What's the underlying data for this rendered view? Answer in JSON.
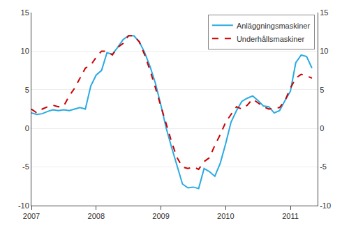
{
  "chart_data": {
    "type": "line",
    "x": [
      2007.0,
      2007.083,
      2007.167,
      2007.25,
      2007.333,
      2007.417,
      2007.5,
      2007.583,
      2007.667,
      2007.75,
      2007.833,
      2007.917,
      2008.0,
      2008.083,
      2008.167,
      2008.25,
      2008.333,
      2008.417,
      2008.5,
      2008.583,
      2008.667,
      2008.75,
      2008.833,
      2008.917,
      2009.0,
      2009.083,
      2009.167,
      2009.25,
      2009.333,
      2009.417,
      2009.5,
      2009.583,
      2009.667,
      2009.75,
      2009.833,
      2009.917,
      2010.0,
      2010.083,
      2010.167,
      2010.25,
      2010.333,
      2010.417,
      2010.5,
      2010.583,
      2010.667,
      2010.75,
      2010.833,
      2010.917,
      2011.0,
      2011.083,
      2011.167,
      2011.25,
      2011.333
    ],
    "series": [
      {
        "name": "Anläggningsmaskiner",
        "color": "#29abe2",
        "line_style": "solid",
        "values": [
          2.0,
          1.8,
          1.9,
          2.2,
          2.4,
          2.3,
          2.4,
          2.3,
          2.5,
          2.7,
          2.5,
          5.5,
          6.9,
          7.5,
          9.8,
          9.6,
          10.5,
          11.5,
          12.0,
          12.0,
          11.2,
          9.8,
          8.0,
          5.8,
          3.0,
          0.0,
          -2.5,
          -4.8,
          -7.2,
          -7.7,
          -7.6,
          -7.8,
          -5.2,
          -5.6,
          -6.2,
          -4.5,
          -2.0,
          0.8,
          2.3,
          3.5,
          3.9,
          4.2,
          3.6,
          2.9,
          2.8,
          2.0,
          2.3,
          3.6,
          4.8,
          8.5,
          9.5,
          9.3,
          7.8
        ]
      },
      {
        "name": "Underhållsmaskiner",
        "color": "#cc0000",
        "line_style": "dashed",
        "values": [
          2.5,
          2.0,
          2.5,
          2.8,
          3.0,
          2.8,
          2.9,
          4.2,
          5.2,
          6.5,
          7.8,
          8.2,
          9.2,
          10.0,
          10.0,
          9.5,
          10.5,
          11.0,
          12.0,
          12.0,
          11.2,
          9.5,
          7.5,
          5.2,
          2.8,
          0.5,
          -1.8,
          -3.8,
          -5.0,
          -5.2,
          -5.0,
          -5.3,
          -4.3,
          -3.8,
          -2.2,
          -0.8,
          0.8,
          1.8,
          2.8,
          2.5,
          3.0,
          3.8,
          3.3,
          2.8,
          2.5,
          2.6,
          2.7,
          3.6,
          5.2,
          6.5,
          7.0,
          6.8,
          6.5
        ]
      }
    ],
    "xlim": [
      2007.0,
      2011.42
    ],
    "xticks": [
      2007,
      2008,
      2009,
      2010,
      2011
    ],
    "ylim": [
      -10,
      15
    ],
    "yticks": [
      -10,
      -5,
      0,
      5,
      10,
      15
    ],
    "y2lim": [
      -10,
      15
    ],
    "y2ticks": [
      -10,
      -5,
      0,
      5,
      10,
      15
    ],
    "grid": true,
    "legend": "upper right"
  }
}
